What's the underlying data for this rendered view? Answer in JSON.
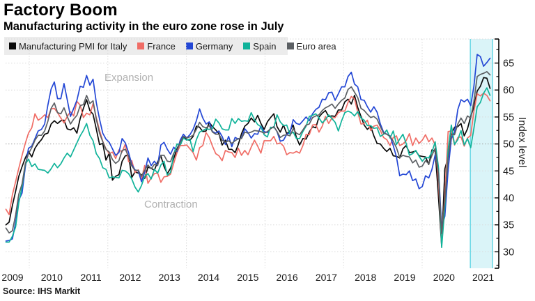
{
  "header": {
    "title": "Factory Boom",
    "subtitle": "Manufacturing activity in the euro zone rose in July"
  },
  "source": "Source: IHS Markit",
  "annotations": {
    "expansion": "Expansion",
    "contraction": "Contraction"
  },
  "colors": {
    "italy": "#0a0a0a",
    "france": "#f06d66",
    "germany": "#2347d5",
    "spain": "#10b39a",
    "euro_area": "#5c6064",
    "highlight_band_fill": "#daf4f8",
    "highlight_band_edge": "#70d9e6",
    "grid": "#d9d9d9",
    "grid_50": "#9b9b9b",
    "axis": "#000000",
    "zone_label": "#b1b1b1",
    "legend_bg": "#ececec"
  },
  "legend": {
    "items": [
      {
        "label": "Manufacturing PMI for Italy",
        "color": "#0a0a0a"
      },
      {
        "label": "France",
        "color": "#f06d66"
      },
      {
        "label": "Germany",
        "color": "#2347d5"
      },
      {
        "label": "Spain",
        "color": "#10b39a"
      },
      {
        "label": "Euro area",
        "color": "#5c6064"
      }
    ]
  },
  "chart_data": {
    "type": "line",
    "title": "Factory Boom",
    "subtitle": "Manufacturing activity in the euro zone rose in July",
    "xlabel": "",
    "ylabel": "Index level",
    "frequency": "monthly",
    "x_start": "2009-01",
    "x_end": "2021-07",
    "x_tick_labels": [
      "2009",
      "2010",
      "2011",
      "2012",
      "2013",
      "2014",
      "2015",
      "2016",
      "2017",
      "2018",
      "2019",
      "2020",
      "2021"
    ],
    "y_ticks": [
      30,
      35,
      40,
      45,
      50,
      55,
      60,
      65
    ],
    "ylim": [
      27,
      69.5
    ],
    "reference_line": 50,
    "highlight_band": {
      "from": "2021-01",
      "to": "2021-07"
    },
    "series": [
      {
        "name": "Manufacturing PMI for Italy",
        "color": "#0a0a0a",
        "values": [
          35.0,
          35.5,
          38.6,
          41.2,
          44.0,
          45.8,
          47.4,
          48.6,
          47.6,
          49.2,
          50.1,
          50.8,
          51.8,
          52.0,
          53.7,
          54.3,
          53.8,
          54.3,
          54.4,
          52.8,
          52.6,
          53.0,
          52.0,
          54.7,
          56.6,
          58.2,
          56.2,
          55.5,
          52.8,
          49.9,
          50.1,
          47.0,
          48.3,
          43.3,
          44.0,
          44.3,
          46.8,
          47.8,
          47.9,
          43.8,
          44.8,
          44.6,
          44.3,
          43.6,
          45.7,
          45.5,
          45.1,
          46.7,
          47.8,
          45.8,
          44.5,
          45.5,
          47.3,
          49.1,
          50.4,
          51.3,
          50.8,
          50.7,
          51.4,
          53.3,
          53.1,
          52.3,
          52.4,
          54.0,
          53.2,
          52.6,
          51.9,
          49.8,
          50.7,
          49.0,
          49.0,
          48.4,
          49.9,
          51.9,
          53.3,
          53.8,
          54.8,
          54.1,
          55.3,
          53.8,
          52.7,
          54.1,
          54.9,
          55.6,
          53.2,
          52.2,
          53.5,
          51.9,
          52.4,
          53.5,
          51.2,
          49.8,
          51.0,
          50.9,
          52.2,
          53.2,
          53.0,
          55.0,
          55.7,
          56.2,
          55.1,
          55.2,
          55.1,
          56.3,
          56.3,
          57.8,
          58.3,
          57.4,
          59.0,
          56.8,
          55.1,
          53.5,
          52.7,
          53.3,
          51.5,
          50.1,
          50.0,
          49.2,
          48.6,
          49.2,
          47.8,
          47.7,
          47.4,
          49.1,
          49.7,
          48.4,
          48.5,
          48.7,
          47.8,
          47.7,
          47.6,
          46.2,
          48.9,
          48.7,
          40.3,
          31.1,
          45.4,
          47.5,
          51.9,
          53.1,
          53.2,
          53.8,
          51.5,
          52.8,
          55.1,
          56.9,
          59.8,
          60.7,
          62.3,
          62.2,
          60.3
        ]
      },
      {
        "name": "France",
        "color": "#f06d66",
        "values": [
          37.9,
          36.9,
          40.6,
          43.0,
          45.5,
          47.9,
          50.1,
          52.0,
          53.0,
          55.6,
          54.4,
          54.8,
          55.4,
          54.9,
          56.5,
          56.6,
          55.8,
          54.8,
          53.9,
          55.1,
          56.0,
          55.2,
          57.9,
          57.2,
          54.9,
          55.7,
          55.4,
          57.5,
          54.9,
          52.5,
          50.5,
          49.1,
          48.2,
          48.5,
          47.3,
          48.9,
          48.5,
          50.0,
          46.7,
          46.9,
          44.7,
          45.2,
          43.4,
          46.0,
          42.7,
          43.7,
          44.5,
          44.6,
          42.9,
          43.9,
          44.0,
          44.4,
          46.4,
          48.4,
          49.7,
          49.7,
          49.8,
          49.1,
          48.4,
          47.0,
          49.3,
          49.7,
          52.1,
          51.2,
          49.6,
          48.2,
          47.8,
          46.9,
          48.8,
          48.5,
          48.4,
          47.5,
          49.2,
          47.9,
          48.8,
          48.0,
          49.4,
          50.7,
          49.6,
          48.3,
          50.6,
          50.6,
          50.6,
          51.4,
          50.0,
          50.2,
          49.6,
          48.0,
          48.4,
          48.3,
          48.6,
          48.3,
          49.7,
          51.8,
          51.7,
          53.5,
          53.6,
          52.2,
          53.3,
          55.1,
          53.8,
          54.8,
          54.9,
          55.8,
          56.1,
          56.1,
          57.7,
          58.8,
          58.4,
          55.9,
          53.7,
          53.8,
          54.4,
          52.5,
          53.3,
          53.5,
          52.5,
          51.2,
          50.8,
          49.7,
          51.2,
          51.5,
          49.7,
          50.0,
          50.6,
          51.9,
          49.7,
          51.1,
          50.1,
          50.7,
          51.7,
          50.4,
          51.1,
          49.8,
          43.2,
          31.5,
          40.6,
          52.3,
          52.4,
          49.8,
          51.2,
          51.3,
          49.6,
          51.1,
          51.6,
          56.1,
          59.3,
          58.9,
          59.4,
          59.0,
          58.0
        ]
      },
      {
        "name": "Germany",
        "color": "#2347d5",
        "values": [
          32.0,
          32.1,
          32.4,
          35.4,
          39.6,
          40.9,
          45.7,
          49.2,
          49.6,
          51.0,
          52.4,
          52.7,
          53.7,
          57.2,
          60.2,
          61.5,
          58.4,
          58.4,
          61.2,
          58.2,
          55.1,
          56.6,
          58.1,
          60.7,
          60.5,
          62.7,
          60.9,
          62.0,
          57.7,
          54.6,
          52.0,
          50.9,
          50.3,
          49.1,
          47.9,
          48.4,
          51.0,
          50.2,
          48.4,
          46.2,
          45.2,
          45.0,
          43.0,
          44.7,
          47.4,
          46.0,
          46.8,
          46.0,
          49.8,
          50.3,
          49.0,
          48.1,
          49.4,
          48.6,
          50.7,
          51.8,
          51.1,
          51.7,
          52.7,
          54.3,
          56.5,
          54.8,
          53.7,
          54.1,
          52.3,
          52.0,
          52.4,
          51.4,
          49.9,
          51.4,
          49.5,
          51.2,
          50.9,
          51.1,
          52.8,
          52.1,
          51.1,
          51.9,
          51.8,
          53.3,
          52.3,
          52.1,
          52.9,
          53.2,
          52.3,
          50.5,
          50.7,
          51.8,
          52.1,
          54.5,
          53.8,
          53.6,
          54.3,
          55.0,
          54.3,
          55.6,
          56.4,
          56.8,
          58.3,
          58.2,
          59.5,
          59.6,
          58.1,
          59.3,
          60.6,
          60.6,
          62.5,
          63.3,
          61.1,
          60.6,
          58.2,
          58.1,
          56.9,
          55.9,
          56.9,
          55.9,
          53.7,
          52.2,
          51.8,
          51.5,
          49.7,
          47.6,
          44.1,
          44.4,
          44.3,
          45.0,
          43.2,
          43.5,
          41.7,
          42.1,
          44.1,
          43.7,
          45.3,
          48.0,
          45.4,
          34.5,
          36.6,
          45.2,
          51.0,
          52.2,
          56.4,
          58.2,
          57.8,
          58.3,
          57.1,
          60.7,
          66.6,
          66.2,
          64.4,
          65.1,
          65.9
        ]
      },
      {
        "name": "Spain",
        "color": "#10b39a",
        "values": [
          31.8,
          31.8,
          32.9,
          34.6,
          39.1,
          42.1,
          46.2,
          47.2,
          45.8,
          46.3,
          45.3,
          45.2,
          45.1,
          44.6,
          45.4,
          46.4,
          45.6,
          46.3,
          47.4,
          48.3,
          47.6,
          48.9,
          50.2,
          51.5,
          52.5,
          53.8,
          51.6,
          50.6,
          48.2,
          47.3,
          45.6,
          45.3,
          43.7,
          43.9,
          43.8,
          43.7,
          45.1,
          45.0,
          44.5,
          43.5,
          42.0,
          41.1,
          42.3,
          44.0,
          44.5,
          43.5,
          45.3,
          44.6,
          46.1,
          46.8,
          44.2,
          44.7,
          48.1,
          50.0,
          49.8,
          51.1,
          50.7,
          50.9,
          48.6,
          50.8,
          52.2,
          52.5,
          52.8,
          52.7,
          52.9,
          54.6,
          53.9,
          52.8,
          52.6,
          52.6,
          54.7,
          53.8,
          54.7,
          54.2,
          54.3,
          54.2,
          55.8,
          54.5,
          53.6,
          53.2,
          51.7,
          51.3,
          53.1,
          53.0,
          55.4,
          54.1,
          53.4,
          53.5,
          51.8,
          52.2,
          51.0,
          51.0,
          52.3,
          53.3,
          55.1,
          55.3,
          55.6,
          54.8,
          53.9,
          54.5,
          55.4,
          54.7,
          54.0,
          52.4,
          54.3,
          55.8,
          56.1,
          55.8,
          55.2,
          56.0,
          54.8,
          54.4,
          53.4,
          53.4,
          52.9,
          53.0,
          51.4,
          51.8,
          52.6,
          51.1,
          52.4,
          49.9,
          50.9,
          51.8,
          50.1,
          47.9,
          48.2,
          48.8,
          47.7,
          46.8,
          47.5,
          47.4,
          48.5,
          50.4,
          45.7,
          30.8,
          38.3,
          49.0,
          53.5,
          49.9,
          50.8,
          52.5,
          49.8,
          51.0,
          49.3,
          52.9,
          56.9,
          57.7,
          59.4,
          60.4,
          59.0
        ]
      },
      {
        "name": "Euro area",
        "color": "#5c6064",
        "values": [
          34.4,
          33.5,
          33.9,
          36.8,
          40.7,
          42.6,
          46.3,
          48.2,
          49.3,
          50.7,
          51.6,
          51.6,
          52.4,
          54.2,
          56.6,
          57.6,
          55.8,
          55.6,
          56.7,
          55.1,
          53.7,
          54.6,
          55.3,
          57.1,
          57.3,
          59.0,
          57.5,
          58.0,
          54.6,
          52.0,
          50.4,
          49.0,
          48.5,
          47.1,
          46.4,
          46.9,
          48.8,
          49.0,
          47.7,
          45.9,
          45.1,
          45.1,
          44.0,
          45.1,
          46.1,
          45.4,
          46.2,
          46.1,
          47.9,
          47.9,
          46.8,
          46.7,
          48.3,
          48.8,
          50.3,
          51.4,
          51.1,
          51.3,
          51.6,
          52.7,
          54.0,
          53.2,
          53.0,
          53.4,
          52.2,
          51.8,
          51.8,
          50.7,
          50.3,
          50.6,
          50.1,
          50.6,
          51.0,
          51.0,
          52.2,
          52.0,
          52.2,
          52.5,
          52.4,
          52.3,
          52.0,
          52.3,
          52.8,
          53.2,
          52.3,
          51.2,
          51.6,
          51.7,
          51.5,
          52.8,
          52.0,
          51.7,
          52.6,
          53.5,
          53.7,
          54.9,
          55.2,
          55.4,
          56.2,
          56.7,
          57.0,
          57.4,
          56.6,
          57.4,
          58.1,
          58.5,
          60.1,
          60.6,
          59.6,
          58.6,
          56.6,
          56.2,
          55.5,
          54.9,
          55.1,
          54.6,
          53.2,
          52.0,
          51.8,
          51.4,
          50.5,
          49.3,
          47.5,
          47.9,
          47.7,
          47.6,
          46.5,
          47.0,
          45.7,
          45.9,
          46.9,
          46.3,
          47.9,
          49.2,
          44.5,
          33.4,
          39.4,
          47.4,
          51.8,
          51.7,
          53.7,
          54.8,
          53.8,
          55.2,
          54.8,
          57.9,
          62.5,
          62.9,
          63.1,
          63.4,
          62.8
        ]
      }
    ]
  }
}
